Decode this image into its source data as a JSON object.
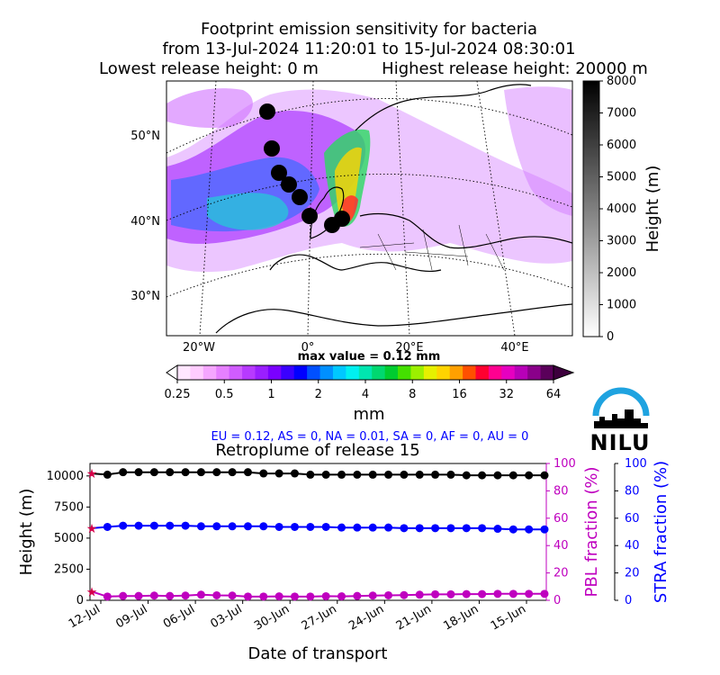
{
  "header": {
    "line1": "Footprint emission sensitivity for bacteria",
    "line2": "from 13-Jul-2024 11:20:01 to 15-Jul-2024 08:30:01",
    "line3_left": "Lowest release height: 0 m",
    "line3_right": "Highest release height: 20000 m"
  },
  "map": {
    "lat_labels": [
      "50°N",
      "40°N",
      "30°N"
    ],
    "lon_labels": [
      "20°W",
      "0°",
      "20°E",
      "40°E"
    ],
    "release_point_count": 9
  },
  "height_colorbar": {
    "label": "Height (m)",
    "ticks": [
      "8000",
      "7000",
      "6000",
      "5000",
      "4000",
      "3000",
      "2000",
      "1000",
      "0"
    ]
  },
  "sensitivity_colorbar": {
    "max_value_text": "max value = 0.12 mm",
    "ticks": [
      "0.25",
      "0.5",
      "1",
      "2",
      "4",
      "8",
      "16",
      "32",
      "64"
    ],
    "unit": "mm"
  },
  "region_line": "EU = 0.12,  AS = 0,  NA = 0.01,  SA = 0,  AF = 0,  AU = 0",
  "logo": {
    "text": "NILU",
    "accent": "#1fa3e0"
  },
  "colors": {
    "height_series": "#000000",
    "strat_series": "#0000ff",
    "pbl_series": "#bf00bf"
  },
  "chart_data": {
    "type": "line",
    "title": "Retroplume of release 15",
    "xlabel": "Date of transport",
    "ylabel": "Height (m)",
    "y2label": "PBL fraction (%)",
    "y3label": "STRA fraction (%)",
    "x_ticks": [
      "12-Jul",
      "09-Jul",
      "06-Jul",
      "03-Jul",
      "30-Jun",
      "27-Jun",
      "24-Jun",
      "21-Jun",
      "18-Jun",
      "15-Jun"
    ],
    "y_ticks": [
      "10000",
      "7500",
      "5000",
      "2500",
      "0"
    ],
    "y2_ticks": [
      "100",
      "80",
      "60",
      "40",
      "20",
      "0"
    ],
    "y3_ticks": [
      "100",
      "80",
      "60",
      "40",
      "20",
      "0"
    ],
    "ylim": [
      0,
      11000
    ],
    "y2lim": [
      0,
      100
    ],
    "y3lim": [
      0,
      100
    ],
    "x_days_back": [
      0,
      1,
      2,
      3,
      4,
      5,
      6,
      7,
      8,
      9,
      10,
      11,
      12,
      13,
      14,
      15,
      16,
      17,
      18,
      19,
      20,
      21,
      22,
      23,
      24,
      25,
      26,
      27,
      28,
      29
    ],
    "series": [
      {
        "values": [
          10200,
          10100,
          10300,
          10300,
          10300,
          10300,
          10300,
          10300,
          10300,
          10300,
          10300,
          10200,
          10200,
          10200,
          10100,
          10100,
          10100,
          10100,
          10100,
          10100,
          10100,
          10100,
          10100,
          10100,
          10050,
          10050,
          10050,
          10050,
          10050,
          10050
        ]
      },
      {
        "values": [
          5800,
          5900,
          6000,
          6000,
          6000,
          6000,
          6000,
          5950,
          5950,
          5950,
          5950,
          5950,
          5900,
          5900,
          5900,
          5900,
          5850,
          5850,
          5850,
          5850,
          5800,
          5800,
          5800,
          5800,
          5800,
          5800,
          5750,
          5700,
          5700,
          5700
        ]
      },
      {
        "values": [
          700,
          300,
          350,
          350,
          380,
          350,
          380,
          450,
          400,
          380,
          300,
          300,
          320,
          300,
          300,
          330,
          320,
          350,
          380,
          400,
          420,
          450,
          480,
          480,
          500,
          500,
          520,
          520,
          520,
          520
        ]
      }
    ],
    "start_marker": "★"
  }
}
